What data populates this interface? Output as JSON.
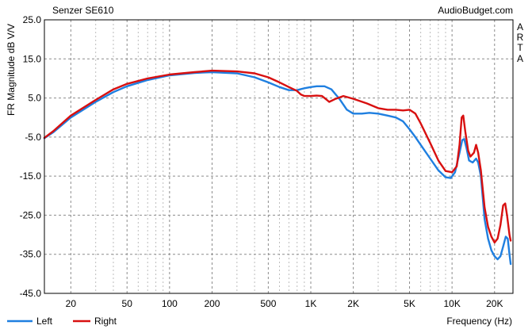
{
  "chart_data": {
    "type": "line",
    "title": "Senzer SE610",
    "source": "AudioBudget.com",
    "side_label": [
      "A",
      "R",
      "T",
      "A"
    ],
    "xlabel": "Frequency (Hz)",
    "ylabel": "FR Magnitude dB V/V",
    "x_scale": "log",
    "xlim": [
      13,
      27000
    ],
    "ylim": [
      -45,
      25
    ],
    "x_ticks": [
      20,
      50,
      100,
      200,
      500,
      1000,
      2000,
      5000,
      10000,
      20000
    ],
    "x_tick_labels": [
      "20",
      "50",
      "100",
      "200",
      "500",
      "1K",
      "2K",
      "5K",
      "10K",
      "20K"
    ],
    "y_ticks": [
      25,
      15,
      5,
      -5,
      -15,
      -25,
      -35,
      -45
    ],
    "y_tick_labels": [
      "25.0",
      "15.0",
      "5.0",
      "-5.0",
      "-15.0",
      "-25.0",
      "-35.0",
      "-45.0"
    ],
    "grid": true,
    "legend_position": "bottom-left",
    "series": [
      {
        "name": "Left",
        "color": "#1f7fe0",
        "points": [
          [
            13,
            -5.3
          ],
          [
            15,
            -3.8
          ],
          [
            20,
            0.0
          ],
          [
            30,
            4.0
          ],
          [
            40,
            6.5
          ],
          [
            50,
            8.0
          ],
          [
            70,
            9.6
          ],
          [
            100,
            10.8
          ],
          [
            150,
            11.4
          ],
          [
            200,
            11.6
          ],
          [
            300,
            11.3
          ],
          [
            400,
            10.3
          ],
          [
            500,
            9.0
          ],
          [
            600,
            7.8
          ],
          [
            700,
            7.0
          ],
          [
            800,
            7.0
          ],
          [
            900,
            7.5
          ],
          [
            1000,
            7.8
          ],
          [
            1100,
            8.0
          ],
          [
            1250,
            8.0
          ],
          [
            1400,
            7.2
          ],
          [
            1600,
            4.7
          ],
          [
            1800,
            2.0
          ],
          [
            2000,
            1.0
          ],
          [
            2300,
            1.0
          ],
          [
            2600,
            1.2
          ],
          [
            3000,
            1.0
          ],
          [
            3500,
            0.5
          ],
          [
            4000,
            0.0
          ],
          [
            4500,
            -1.0
          ],
          [
            5000,
            -3.0
          ],
          [
            5500,
            -5.0
          ],
          [
            6000,
            -7.0
          ],
          [
            7000,
            -10.5
          ],
          [
            8000,
            -13.5
          ],
          [
            9000,
            -15.3
          ],
          [
            9800,
            -15.5
          ],
          [
            10500,
            -14.0
          ],
          [
            11300,
            -9.0
          ],
          [
            11800,
            -5.8
          ],
          [
            12200,
            -5.5
          ],
          [
            12700,
            -8.0
          ],
          [
            13200,
            -11.0
          ],
          [
            14000,
            -11.5
          ],
          [
            14800,
            -10.5
          ],
          [
            15300,
            -11.5
          ],
          [
            16000,
            -15.0
          ],
          [
            17000,
            -26.0
          ],
          [
            18000,
            -31.0
          ],
          [
            19000,
            -34.0
          ],
          [
            20000,
            -35.5
          ],
          [
            21000,
            -36.3
          ],
          [
            22000,
            -35.5
          ],
          [
            23000,
            -33.0
          ],
          [
            24000,
            -30.5
          ],
          [
            24800,
            -31.0
          ],
          [
            25500,
            -35.0
          ],
          [
            26000,
            -37.5
          ]
        ]
      },
      {
        "name": "Right",
        "color": "#d81010",
        "points": [
          [
            13,
            -5.2
          ],
          [
            15,
            -3.5
          ],
          [
            20,
            0.5
          ],
          [
            30,
            4.5
          ],
          [
            40,
            7.2
          ],
          [
            50,
            8.6
          ],
          [
            70,
            10.0
          ],
          [
            100,
            11.0
          ],
          [
            150,
            11.6
          ],
          [
            200,
            12.0
          ],
          [
            300,
            11.8
          ],
          [
            400,
            11.3
          ],
          [
            500,
            10.3
          ],
          [
            600,
            9.0
          ],
          [
            700,
            7.8
          ],
          [
            800,
            6.8
          ],
          [
            850,
            5.9
          ],
          [
            900,
            5.5
          ],
          [
            1000,
            5.5
          ],
          [
            1100,
            5.6
          ],
          [
            1200,
            5.5
          ],
          [
            1300,
            4.5
          ],
          [
            1350,
            4.0
          ],
          [
            1500,
            4.8
          ],
          [
            1700,
            5.5
          ],
          [
            2000,
            4.8
          ],
          [
            2500,
            3.6
          ],
          [
            3000,
            2.4
          ],
          [
            3500,
            2.0
          ],
          [
            4000,
            2.0
          ],
          [
            4500,
            1.8
          ],
          [
            5000,
            2.0
          ],
          [
            5500,
            1.0
          ],
          [
            6000,
            -1.5
          ],
          [
            7000,
            -6.5
          ],
          [
            8000,
            -11.0
          ],
          [
            9000,
            -13.7
          ],
          [
            10000,
            -14.0
          ],
          [
            10800,
            -12.5
          ],
          [
            11300,
            -7.0
          ],
          [
            11700,
            0.0
          ],
          [
            12000,
            0.5
          ],
          [
            12400,
            -3.5
          ],
          [
            13000,
            -8.5
          ],
          [
            13500,
            -10.0
          ],
          [
            14300,
            -9.0
          ],
          [
            14800,
            -7.0
          ],
          [
            15300,
            -9.0
          ],
          [
            16000,
            -13.5
          ],
          [
            17000,
            -23.0
          ],
          [
            18000,
            -28.0
          ],
          [
            19000,
            -30.5
          ],
          [
            20000,
            -32.0
          ],
          [
            21000,
            -31.0
          ],
          [
            22000,
            -27.5
          ],
          [
            23000,
            -22.5
          ],
          [
            23800,
            -22.0
          ],
          [
            24500,
            -25.0
          ],
          [
            25500,
            -30.0
          ],
          [
            26000,
            -31.5
          ]
        ]
      }
    ]
  }
}
